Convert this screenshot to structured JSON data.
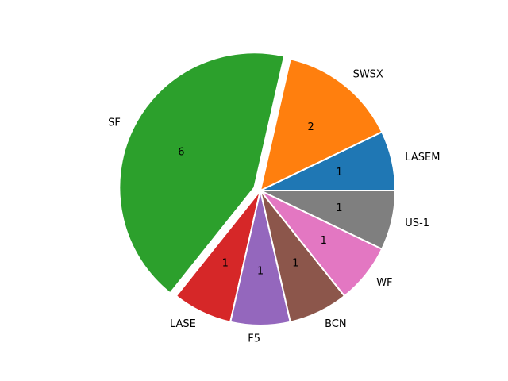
{
  "chart_data": {
    "type": "pie",
    "categories": [
      "LASEM",
      "SWSX",
      "SF",
      "LASE",
      "F5",
      "BCN",
      "WF",
      "US-1"
    ],
    "values": [
      1,
      2,
      6,
      1,
      1,
      1,
      1,
      1
    ],
    "colors": [
      "#1f77b4",
      "#ff7f0e",
      "#2ca02c",
      "#d62728",
      "#9467bd",
      "#8c564b",
      "#e377c2",
      "#7f7f7f"
    ],
    "explode": [
      0,
      0,
      0.05,
      0,
      0,
      0,
      0,
      0
    ]
  }
}
